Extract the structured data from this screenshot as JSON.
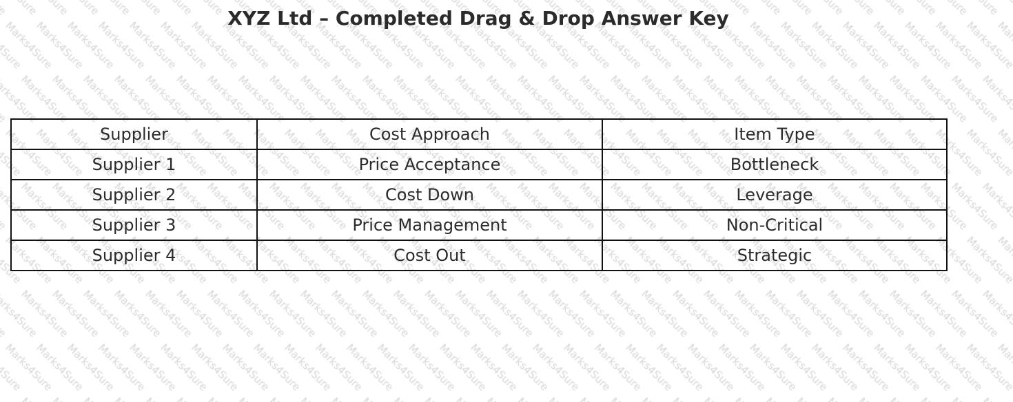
{
  "title": "XYZ Ltd – Completed Drag & Drop Answer Key",
  "watermark": "Marks4Sure",
  "table": {
    "headers": [
      "Supplier",
      "Cost Approach",
      "Item Type"
    ],
    "rows": [
      [
        "Supplier 1",
        "Price Acceptance",
        "Bottleneck"
      ],
      [
        "Supplier 2",
        "Cost Down",
        "Leverage"
      ],
      [
        "Supplier 3",
        "Price Management",
        "Non-Critical"
      ],
      [
        "Supplier 4",
        "Cost Out",
        "Strategic"
      ]
    ]
  }
}
